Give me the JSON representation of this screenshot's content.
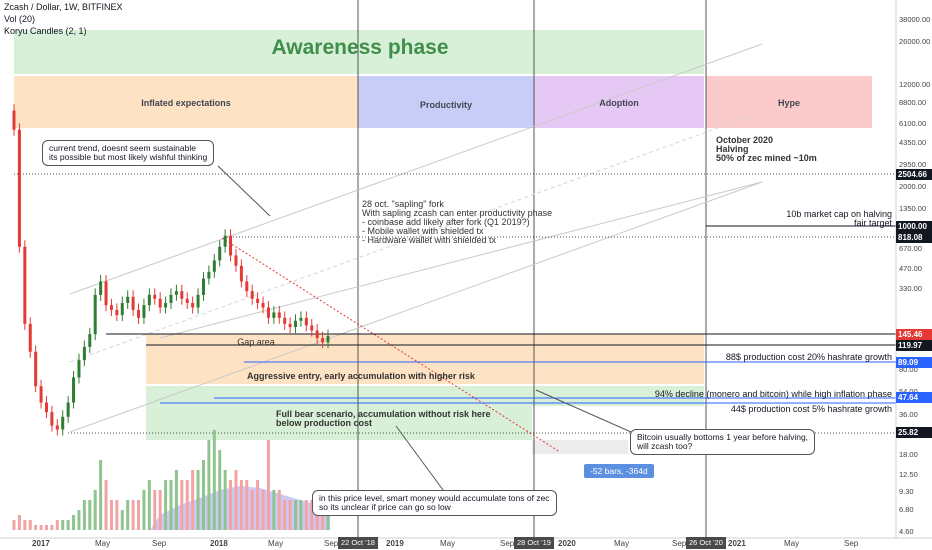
{
  "header": {
    "title": "Zcash / Dollar, 1W, BITFINEX",
    "indicator1": "Vol (20)",
    "indicator2": "Koryu Candles (2, 1)"
  },
  "zones": {
    "awareness": "Awareness phase",
    "inflated": "Inflated expectations",
    "productivity": "Productivity",
    "adoption": "Adoption",
    "hype": "Hype",
    "gap": "Gap area",
    "aggressive": "Aggressive entry, early accumulation with higher risk",
    "bear": "Full bear scenario, accumulation without risk here\nbelow production cost"
  },
  "annotations": {
    "halving": "October 2020\nHalving\n50% of zec mined ~10m",
    "sapling": "28 oct. \"sapling\" fork\nWith sapling zcash can enter productivity phase\n- coinbase add likely after fork (Q1 2019?)\n- Mobile wallet with shielded tx\n- Hardware wallet with shielded tx",
    "marketcap": "10b market cap on halving\nfair target",
    "prod20": "88$ production cost 20% hashrate growth",
    "decline94": "94% decline (monero and bitcoin) while high inflation phase",
    "prod5": "44$ production cost 5% hashrate growth",
    "trend_bubble": "current trend, doesnt seem sustainable\nits possible but most likely wishful thinking",
    "bitcoin_bubble": "Bitcoin usually bottoms 1 year before halving,\nwill zcash too?",
    "smartmoney_bubble": "in this price level, smart money would accumulate tons of zec\nso its unclear if price can go so low",
    "measure": "-52 bars, -364d"
  },
  "colors": {
    "green_zone": "#d8efd8",
    "orange_zone": "#fde3c3",
    "blue_zone": "#c7cdf7",
    "purple_zone": "#e6c8f5",
    "red_zone": "#fbcaca",
    "up_candle": "#2e7d32",
    "down_candle": "#e53935",
    "price_tag_red": "#e53935",
    "level_tag_black": "#131722",
    "level_tag_blue": "#2962ff"
  },
  "chart_data": {
    "type": "candlestick",
    "scale": "log",
    "y_ticks": [
      4.6,
      6.8,
      9.3,
      12.5,
      18,
      25.82,
      36,
      54,
      80,
      120,
      330,
      470,
      670,
      1000,
      1350,
      2000,
      2950,
      4350,
      6100,
      8800,
      12000,
      26000,
      38000
    ],
    "y_tick_labels": [
      "4.60",
      "6.80",
      "9.30",
      "12.50",
      "18.00",
      "25.82",
      "36.00",
      "54.00",
      "80.00",
      "120.00",
      "330.00",
      "470.00",
      "670.00",
      "1000.00",
      "1350.00",
      "2000.00",
      "2950.00",
      "4350.00",
      "6100.00",
      "8800.00",
      "12000.00",
      "26000.00",
      "38000.00"
    ],
    "x_ticks": [
      "2017",
      "May",
      "Sep",
      "2018",
      "May",
      "Sep",
      "2019",
      "May",
      "Sep",
      "2020",
      "May",
      "Sep",
      "2021",
      "May",
      "Sep"
    ],
    "vertical_markers": [
      "22 Oct '18",
      "28 Oct '19",
      "26 Oct '20"
    ],
    "price_levels": [
      {
        "value": "2504.66",
        "style": "black"
      },
      {
        "value": "1000.00",
        "style": "black"
      },
      {
        "value": "818.08",
        "style": "black"
      },
      {
        "value": "145.46",
        "style": "red"
      },
      {
        "value": "119.97",
        "style": "black"
      },
      {
        "value": "89.09",
        "style": "blue"
      },
      {
        "value": "47.64",
        "style": "blue"
      },
      {
        "value": "25.82",
        "style": "black"
      }
    ],
    "ohlc_close_estimate": [
      5500,
      700,
      180,
      110,
      60,
      45,
      38,
      30,
      28,
      35,
      45,
      70,
      95,
      120,
      150,
      300,
      380,
      250,
      230,
      210,
      260,
      290,
      230,
      200,
      250,
      300,
      280,
      240,
      260,
      300,
      320,
      280,
      260,
      240,
      300,
      400,
      450,
      550,
      700,
      850,
      600,
      500,
      380,
      320,
      280,
      260,
      240,
      200,
      220,
      200,
      180,
      170,
      190,
      200,
      175,
      160,
      140,
      130,
      145
    ],
    "volume_relative": [
      0.1,
      0.15,
      0.1,
      0.1,
      0.05,
      0.05,
      0.05,
      0.05,
      0.1,
      0.1,
      0.1,
      0.15,
      0.2,
      0.3,
      0.3,
      0.4,
      0.7,
      0.5,
      0.3,
      0.3,
      0.2,
      0.3,
      0.3,
      0.3,
      0.4,
      0.5,
      0.4,
      0.4,
      0.5,
      0.5,
      0.6,
      0.5,
      0.5,
      0.6,
      0.6,
      0.7,
      0.9,
      1.0,
      0.8,
      0.6,
      0.5,
      0.6,
      0.5,
      0.5,
      0.4,
      0.5,
      0.4,
      0.9,
      0.4,
      0.4,
      0.3,
      0.3,
      0.3,
      0.3,
      0.3,
      0.3,
      0.3,
      0.2,
      0.2
    ]
  }
}
